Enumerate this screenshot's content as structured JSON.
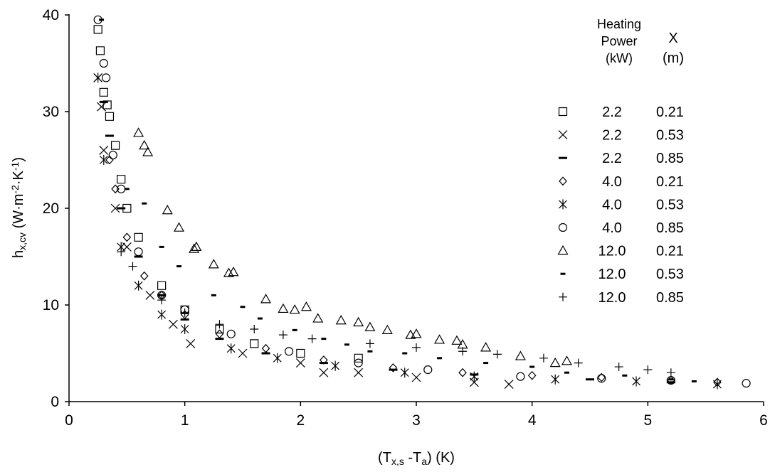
{
  "chart_data": {
    "type": "scatter",
    "xlabel_parts": [
      {
        "text": "(T",
        "style": "normal"
      },
      {
        "text": "x,s",
        "style": "sub"
      },
      {
        "text": " -T",
        "style": "normal"
      },
      {
        "text": "a",
        "style": "sub"
      },
      {
        "text": ")  (K)",
        "style": "normal"
      }
    ],
    "ylabel_parts": [
      {
        "text": "h",
        "style": "normal"
      },
      {
        "text": "x,cv",
        "style": "sub"
      },
      {
        "text": " (W·m",
        "style": "normal"
      },
      {
        "text": "-2",
        "style": "sup"
      },
      {
        "text": "·K",
        "style": "normal"
      },
      {
        "text": "-1",
        "style": "sup"
      },
      {
        "text": ")",
        "style": "normal"
      }
    ],
    "legend_headers": [
      [
        "Heating",
        "Power",
        "(kW)"
      ],
      [
        "X",
        "(m)"
      ]
    ],
    "xlim": [
      0,
      6
    ],
    "xticks": [
      0,
      1,
      2,
      3,
      4,
      5,
      6
    ],
    "ylim": [
      0,
      40
    ],
    "yticks": [
      0,
      10,
      20,
      30,
      40
    ],
    "series": [
      {
        "power": "2.2",
        "position": "0.21",
        "marker": "square",
        "color": "#000000",
        "x": [
          0.25,
          0.27,
          0.3,
          0.33,
          0.35,
          0.4,
          0.45,
          0.5,
          0.6,
          0.8,
          1.0,
          1.3,
          1.6,
          2.0,
          2.5
        ],
        "values": [
          38.5,
          36.3,
          32,
          30.7,
          29.5,
          26.5,
          23,
          20,
          17,
          12,
          9.5,
          7.5,
          6,
          5,
          4.5
        ]
      },
      {
        "power": "2.2",
        "position": "0.53",
        "marker": "x",
        "color": "#000000",
        "x": [
          0.25,
          0.28,
          0.3,
          0.4,
          0.5,
          0.7,
          0.9,
          1.05,
          1.5,
          2.0,
          2.2,
          2.5,
          3.0,
          3.5,
          3.8
        ],
        "values": [
          33.5,
          30.5,
          26,
          20,
          16,
          11,
          8,
          6,
          5,
          4,
          3,
          3,
          2.5,
          2,
          1.8
        ]
      },
      {
        "power": "2.2",
        "position": "0.85",
        "marker": "dash",
        "color": "#000000",
        "x": [
          0.3,
          0.35,
          0.45,
          0.6,
          0.8,
          1.0,
          1.3,
          1.7,
          2.2,
          2.8,
          3.5,
          4.5,
          5.2
        ],
        "values": [
          31,
          27.5,
          20,
          15,
          11,
          8.5,
          6.5,
          5,
          4,
          3.3,
          2.8,
          2.3,
          2.0
        ]
      },
      {
        "power": "4.0",
        "position": "0.21",
        "marker": "diamond",
        "color": "#000000",
        "x": [
          0.35,
          0.4,
          0.5,
          0.65,
          0.8,
          1.0,
          1.3,
          1.7,
          2.2,
          2.8,
          3.4,
          4.0,
          4.6,
          5.2,
          5.6
        ],
        "values": [
          25,
          22,
          17,
          13,
          11,
          9,
          7,
          5.5,
          4.3,
          3.5,
          3.0,
          2.7,
          2.5,
          2.2,
          2.0
        ]
      },
      {
        "power": "4.0",
        "position": "0.53",
        "marker": "asterisk",
        "color": "#000000",
        "x": [
          0.25,
          0.3,
          0.45,
          0.6,
          0.8,
          1.0,
          1.4,
          1.8,
          2.3,
          2.9,
          3.5,
          4.2,
          4.9,
          5.6
        ],
        "values": [
          33.5,
          25,
          16,
          12,
          9,
          7.5,
          5.5,
          4.5,
          3.7,
          3.0,
          2.6,
          2.3,
          2.1,
          1.8
        ]
      },
      {
        "power": "4.0",
        "position": "0.85",
        "marker": "circle",
        "color": "#000000",
        "x": [
          0.25,
          0.3,
          0.32,
          0.38,
          0.45,
          0.6,
          0.8,
          1.0,
          1.4,
          1.9,
          2.5,
          3.1,
          3.9,
          4.6,
          5.2,
          5.85
        ],
        "values": [
          39.5,
          35,
          33.5,
          25.5,
          22,
          15.5,
          11,
          9.5,
          7,
          5.2,
          4,
          3.3,
          2.6,
          2.4,
          2.2,
          1.9
        ]
      },
      {
        "power": "12.0",
        "position": "0.21",
        "marker": "triangle",
        "color": "#000000",
        "x": [
          0.6,
          0.65,
          0.68,
          0.85,
          0.95,
          1.08,
          1.1,
          1.25,
          1.38,
          1.42,
          1.7,
          1.85,
          1.95,
          2.05,
          2.15,
          2.35,
          2.5,
          2.6,
          2.75,
          2.95,
          3.0,
          3.2,
          3.35,
          3.4,
          3.6,
          3.9,
          4.2,
          4.3
        ],
        "values": [
          27.8,
          26.5,
          25.8,
          19.8,
          18,
          15.8,
          16,
          14.2,
          13.3,
          13.4,
          10.6,
          9.6,
          9.5,
          9.8,
          8.6,
          8.4,
          8.2,
          7.7,
          7.4,
          6.9,
          7.0,
          6.4,
          6.3,
          5.9,
          5.6,
          4.7,
          4.0,
          4.2
        ]
      },
      {
        "power": "12.0",
        "position": "0.53",
        "marker": "smalldash",
        "color": "#000000",
        "x": [
          0.28,
          0.5,
          0.65,
          0.8,
          0.95,
          1.25,
          1.5,
          1.65,
          1.95,
          2.2,
          2.4,
          2.6,
          2.9,
          3.2,
          3.6,
          4.0,
          4.3,
          4.8,
          5.2,
          5.4
        ],
        "values": [
          39.5,
          22,
          20.5,
          16,
          14,
          11,
          9.8,
          8.6,
          7.4,
          6.5,
          5.9,
          5.2,
          5.0,
          4.5,
          4.0,
          3.6,
          3.0,
          2.7,
          2.3,
          2.1
        ]
      },
      {
        "power": "12.0",
        "position": "0.85",
        "marker": "plus",
        "color": "#000000",
        "x": [
          0.45,
          0.55,
          0.8,
          1.0,
          1.3,
          1.6,
          1.85,
          2.1,
          2.6,
          3.0,
          3.4,
          3.7,
          4.1,
          4.4,
          4.75,
          5.0,
          5.2
        ],
        "values": [
          15.5,
          14,
          10.5,
          9.2,
          8,
          7.5,
          6.9,
          6.5,
          6,
          5.6,
          5.2,
          4.9,
          4.5,
          4.0,
          3.6,
          3.3,
          3.0
        ]
      }
    ]
  }
}
